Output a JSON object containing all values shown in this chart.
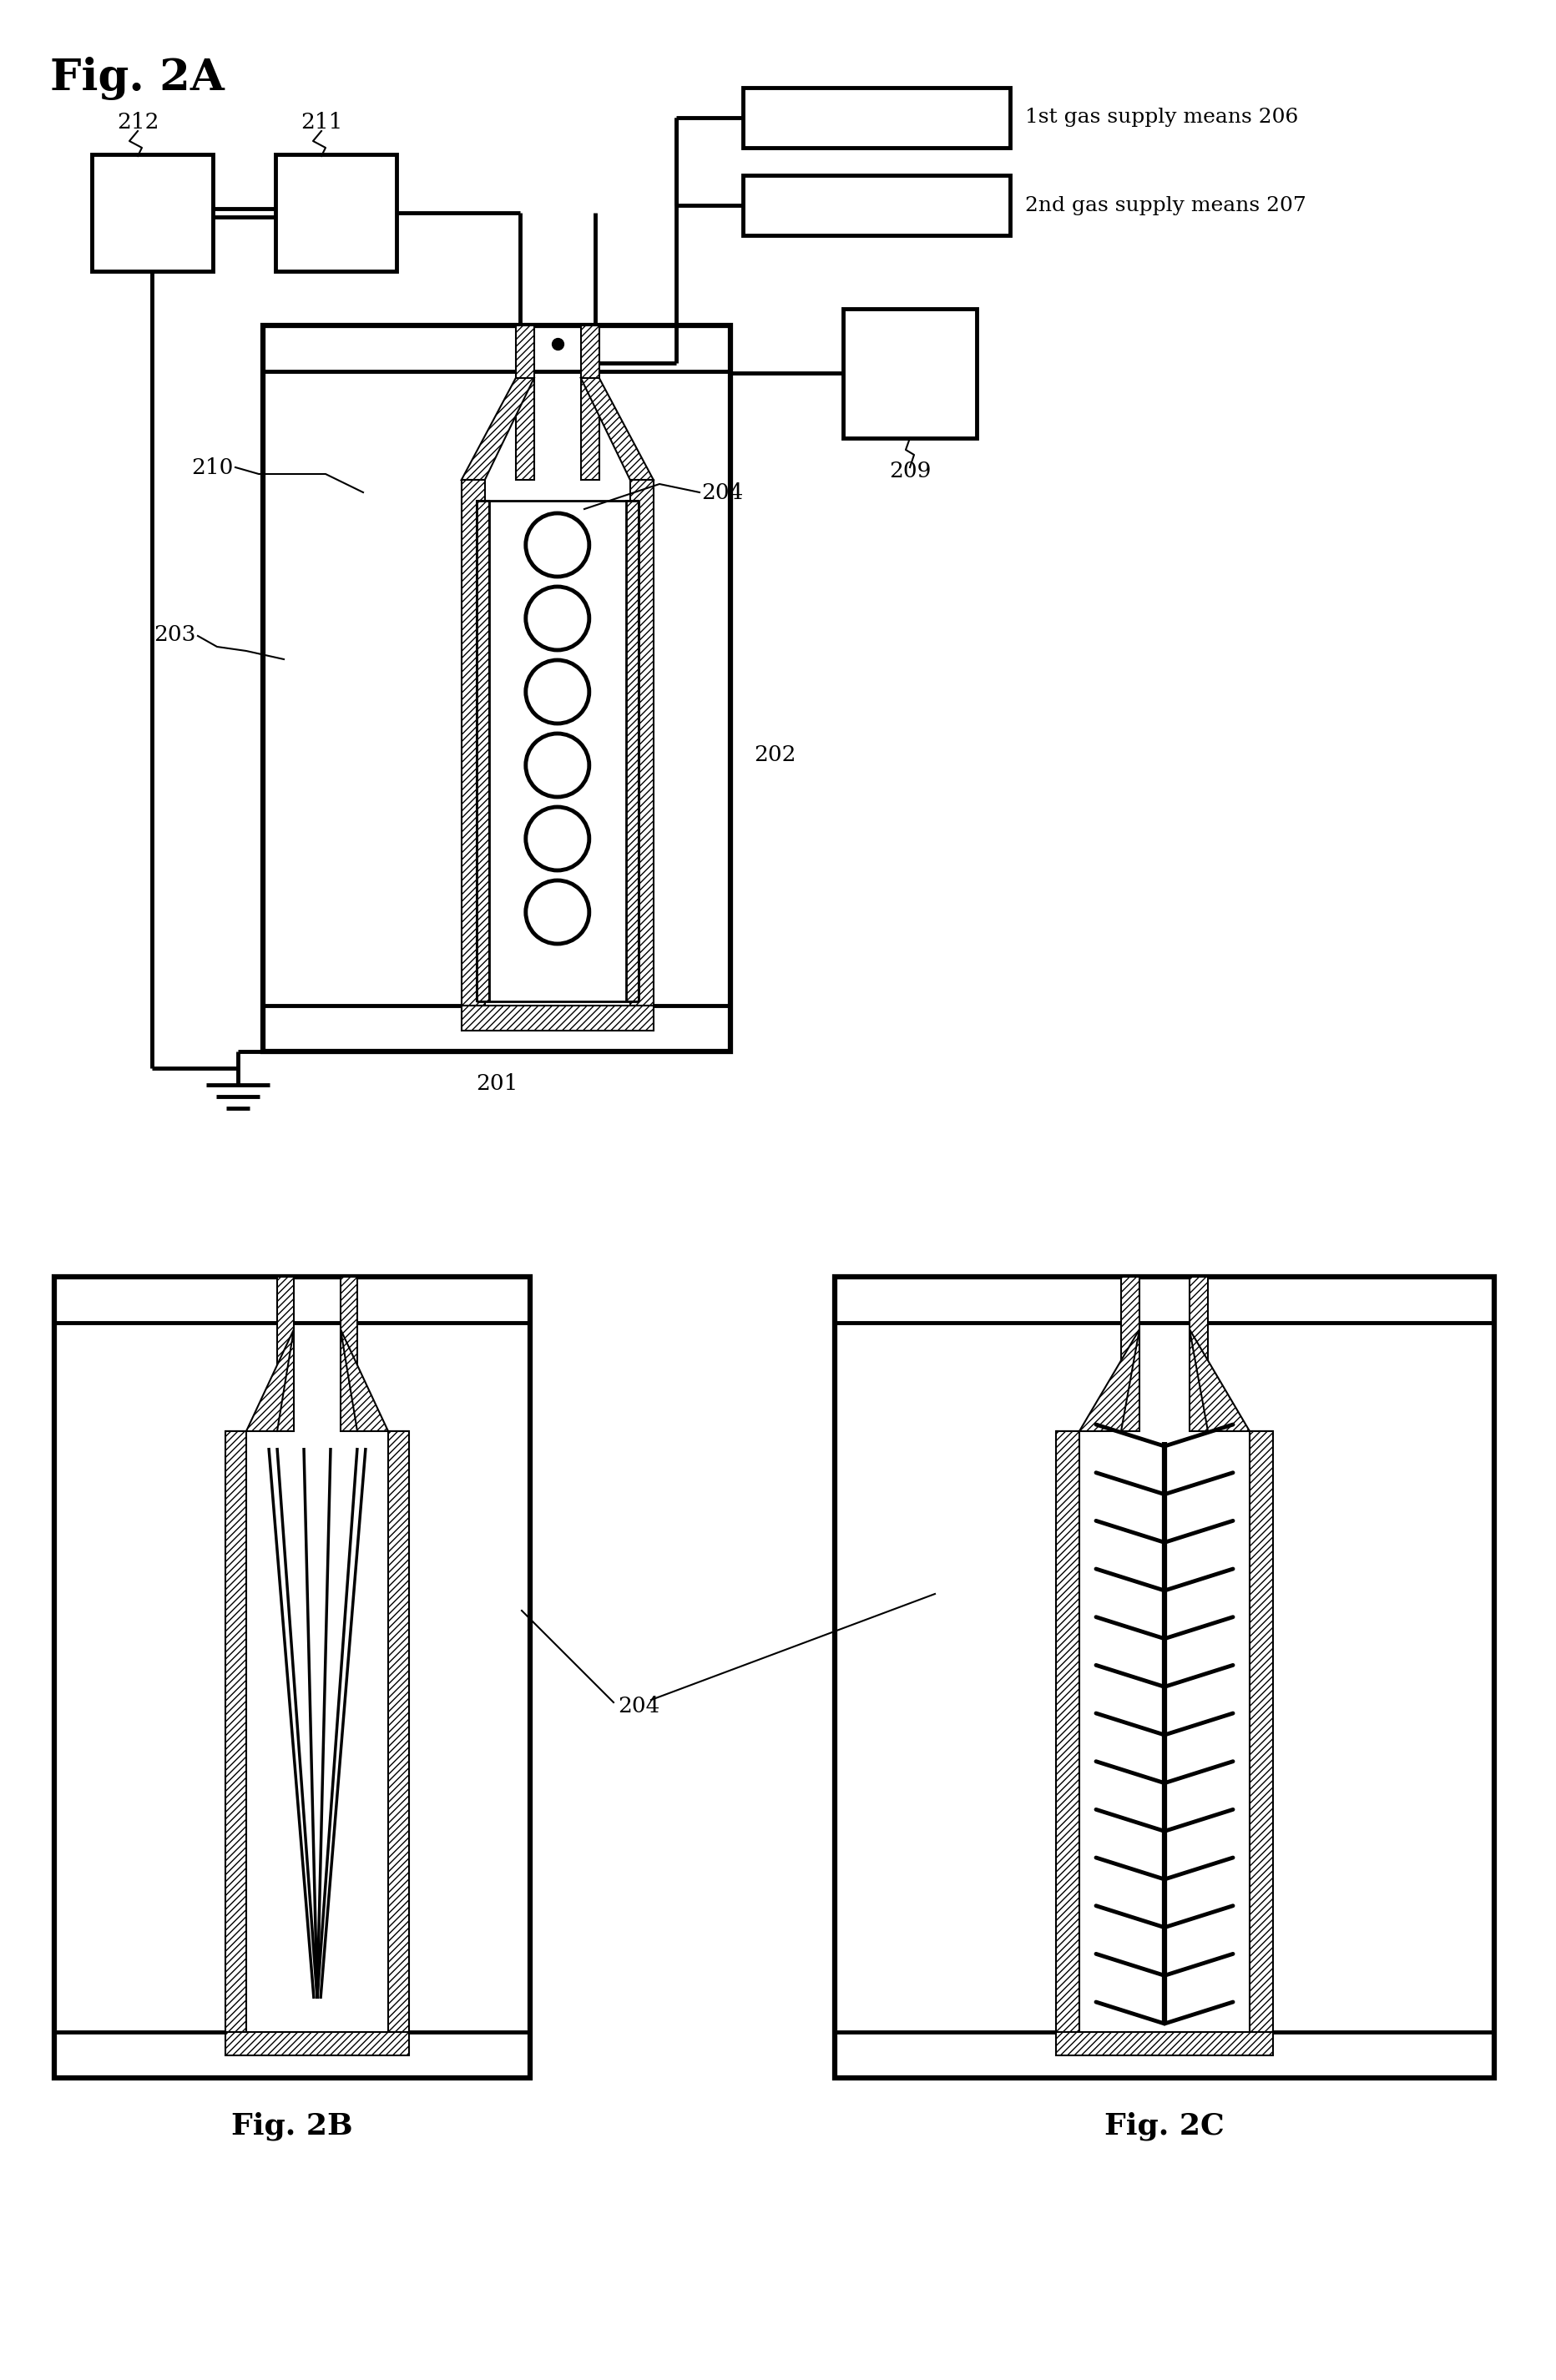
{
  "fig_title_2A": "Fig. 2A",
  "fig_title_2B": "Fig. 2B",
  "fig_title_2C": "Fig. 2C",
  "label_206": "1st gas supply means 206",
  "label_207": "2nd gas supply means 207",
  "bg_color": "#ffffff",
  "lw": 2.0,
  "lw_thick": 3.5
}
